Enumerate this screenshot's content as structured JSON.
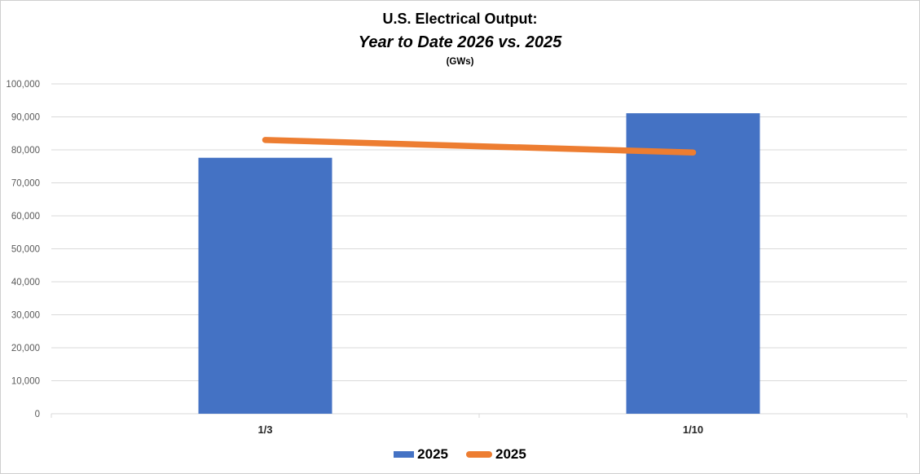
{
  "title": {
    "line1": "U.S. Electrical Output:",
    "line2": "Year to Date 2026 vs. 2025",
    "unit": "(GWs)"
  },
  "legend": {
    "position": "bottom",
    "items": [
      {
        "label": "2025",
        "marker": "bar-swatch",
        "color": "#4472C4"
      },
      {
        "label": "2025",
        "marker": "line-swatch",
        "color": "#ED7D31"
      }
    ]
  },
  "chart_data": {
    "type": "combo",
    "title": "U.S. Electrical Output: Year to Date 2026 vs. 2025",
    "subtitle": "(GWs)",
    "xlabel": "",
    "ylabel": "",
    "categories": [
      "1/3",
      "1/10"
    ],
    "series": [
      {
        "name": "2025",
        "type": "bar",
        "color": "#4472C4",
        "values": [
          77600,
          91100
        ]
      },
      {
        "name": "2025",
        "type": "line",
        "color": "#ED7D31",
        "values": [
          83000,
          79200
        ]
      }
    ],
    "ylim": [
      0,
      100000
    ],
    "grid": true,
    "legend_position": "bottom",
    "y_ticks": [
      {
        "value": 0,
        "label": "0"
      },
      {
        "value": 10000,
        "label": "10,000"
      },
      {
        "value": 20000,
        "label": "20,000"
      },
      {
        "value": 30000,
        "label": "30,000"
      },
      {
        "value": 40000,
        "label": "40,000"
      },
      {
        "value": 50000,
        "label": "50,000"
      },
      {
        "value": 60000,
        "label": "60,000"
      },
      {
        "value": 70000,
        "label": "70,000"
      },
      {
        "value": 80000,
        "label": "80,000"
      },
      {
        "value": 90000,
        "label": "90,000"
      },
      {
        "value": 100000,
        "label": "100,000"
      }
    ],
    "colors": {
      "gridline": "#D9D9D9",
      "axis_line": "#D9D9D9",
      "y_tick_label": "#595959",
      "x_tick_label": "#262626"
    }
  }
}
